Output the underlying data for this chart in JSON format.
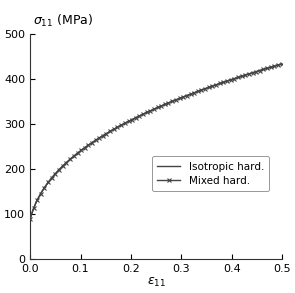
{
  "xlabel": "$\\varepsilon_{11}$",
  "ylabel": "$\\sigma_{11}$ (MPa)",
  "xlim": [
    0.0,
    0.5
  ],
  "ylim": [
    0,
    500
  ],
  "xticks": [
    0.0,
    0.1,
    0.2,
    0.3,
    0.4,
    0.5
  ],
  "yticks": [
    0,
    100,
    200,
    300,
    400,
    500
  ],
  "line_color": "#444444",
  "marker_color": "#444444",
  "legend_entries": [
    "Isotropic hard.",
    "Mixed hard."
  ],
  "swift_C": 560.0,
  "swift_eps0": 0.008,
  "swift_n": 0.38,
  "figsize": [
    2.95,
    2.93
  ],
  "dpi": 100,
  "n_points": 500,
  "n_markers": 70
}
